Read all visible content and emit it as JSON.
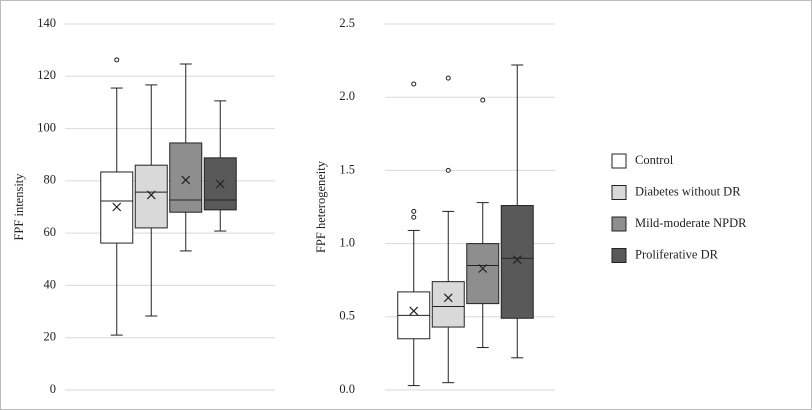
{
  "chart_data": [
    {
      "type": "box",
      "y_label": "FPF intensity",
      "ylim": [
        0,
        140
      ],
      "yticks": [
        0,
        20,
        40,
        60,
        80,
        100,
        120,
        140
      ],
      "grid": true,
      "series": [
        {
          "color": "#ffffff",
          "min": 21,
          "q1": 56.2,
          "median": 72.3,
          "q3": 83.4,
          "max": 115.5,
          "mean": 70,
          "outliers": [
            126.3
          ]
        },
        {
          "color": "#d9d9d9",
          "min": 28.3,
          "q1": 62,
          "median": 75.7,
          "q3": 86,
          "max": 116.7,
          "mean": 74.6,
          "outliers": []
        },
        {
          "color": "#8e8e8e",
          "min": 53.2,
          "q1": 68,
          "median": 72.7,
          "q3": 94.5,
          "max": 124.7,
          "mean": 80.3,
          "outliers": []
        },
        {
          "color": "#595959",
          "min": 60.8,
          "q1": 68.9,
          "median": 72.7,
          "q3": 88.8,
          "max": 110.6,
          "mean": 78.8,
          "outliers": []
        }
      ]
    },
    {
      "type": "box",
      "y_label": "FPF heterogeneity",
      "ylim": [
        0,
        2.5
      ],
      "yticks": [
        {
          "value": 0,
          "label": "0.0"
        },
        0.5,
        {
          "value": 1,
          "label": "1.0"
        },
        1.5,
        {
          "value": 2,
          "label": "2.0"
        },
        2.5
      ],
      "grid": true,
      "series": [
        {
          "name": "Control",
          "color": "#ffffff",
          "min": 0.03,
          "q1": 0.35,
          "median": 0.51,
          "q3": 0.67,
          "max": 1.09,
          "mean": 0.54,
          "outliers": [
            2.09,
            1.22,
            1.18
          ]
        },
        {
          "name": "Diabetes without DR",
          "color": "#d9d9d9",
          "min": 0.05,
          "q1": 0.43,
          "median": 0.57,
          "q3": 0.74,
          "max": 1.22,
          "mean": 0.63,
          "outliers": [
            2.13,
            1.5
          ]
        },
        {
          "name": "Mild-moderate NPDR",
          "color": "#8e8e8e",
          "min": 0.29,
          "q1": 0.59,
          "median": 0.85,
          "q3": 1.0,
          "max": 1.28,
          "mean": 0.83,
          "outliers": [
            1.98
          ]
        },
        {
          "name": "Proliferative DR",
          "color": "#595959",
          "min": 0.22,
          "q1": 0.49,
          "median": 0.9,
          "q3": 1.26,
          "max": 2.22,
          "mean": 0.89,
          "outliers": []
        }
      ]
    }
  ]
}
